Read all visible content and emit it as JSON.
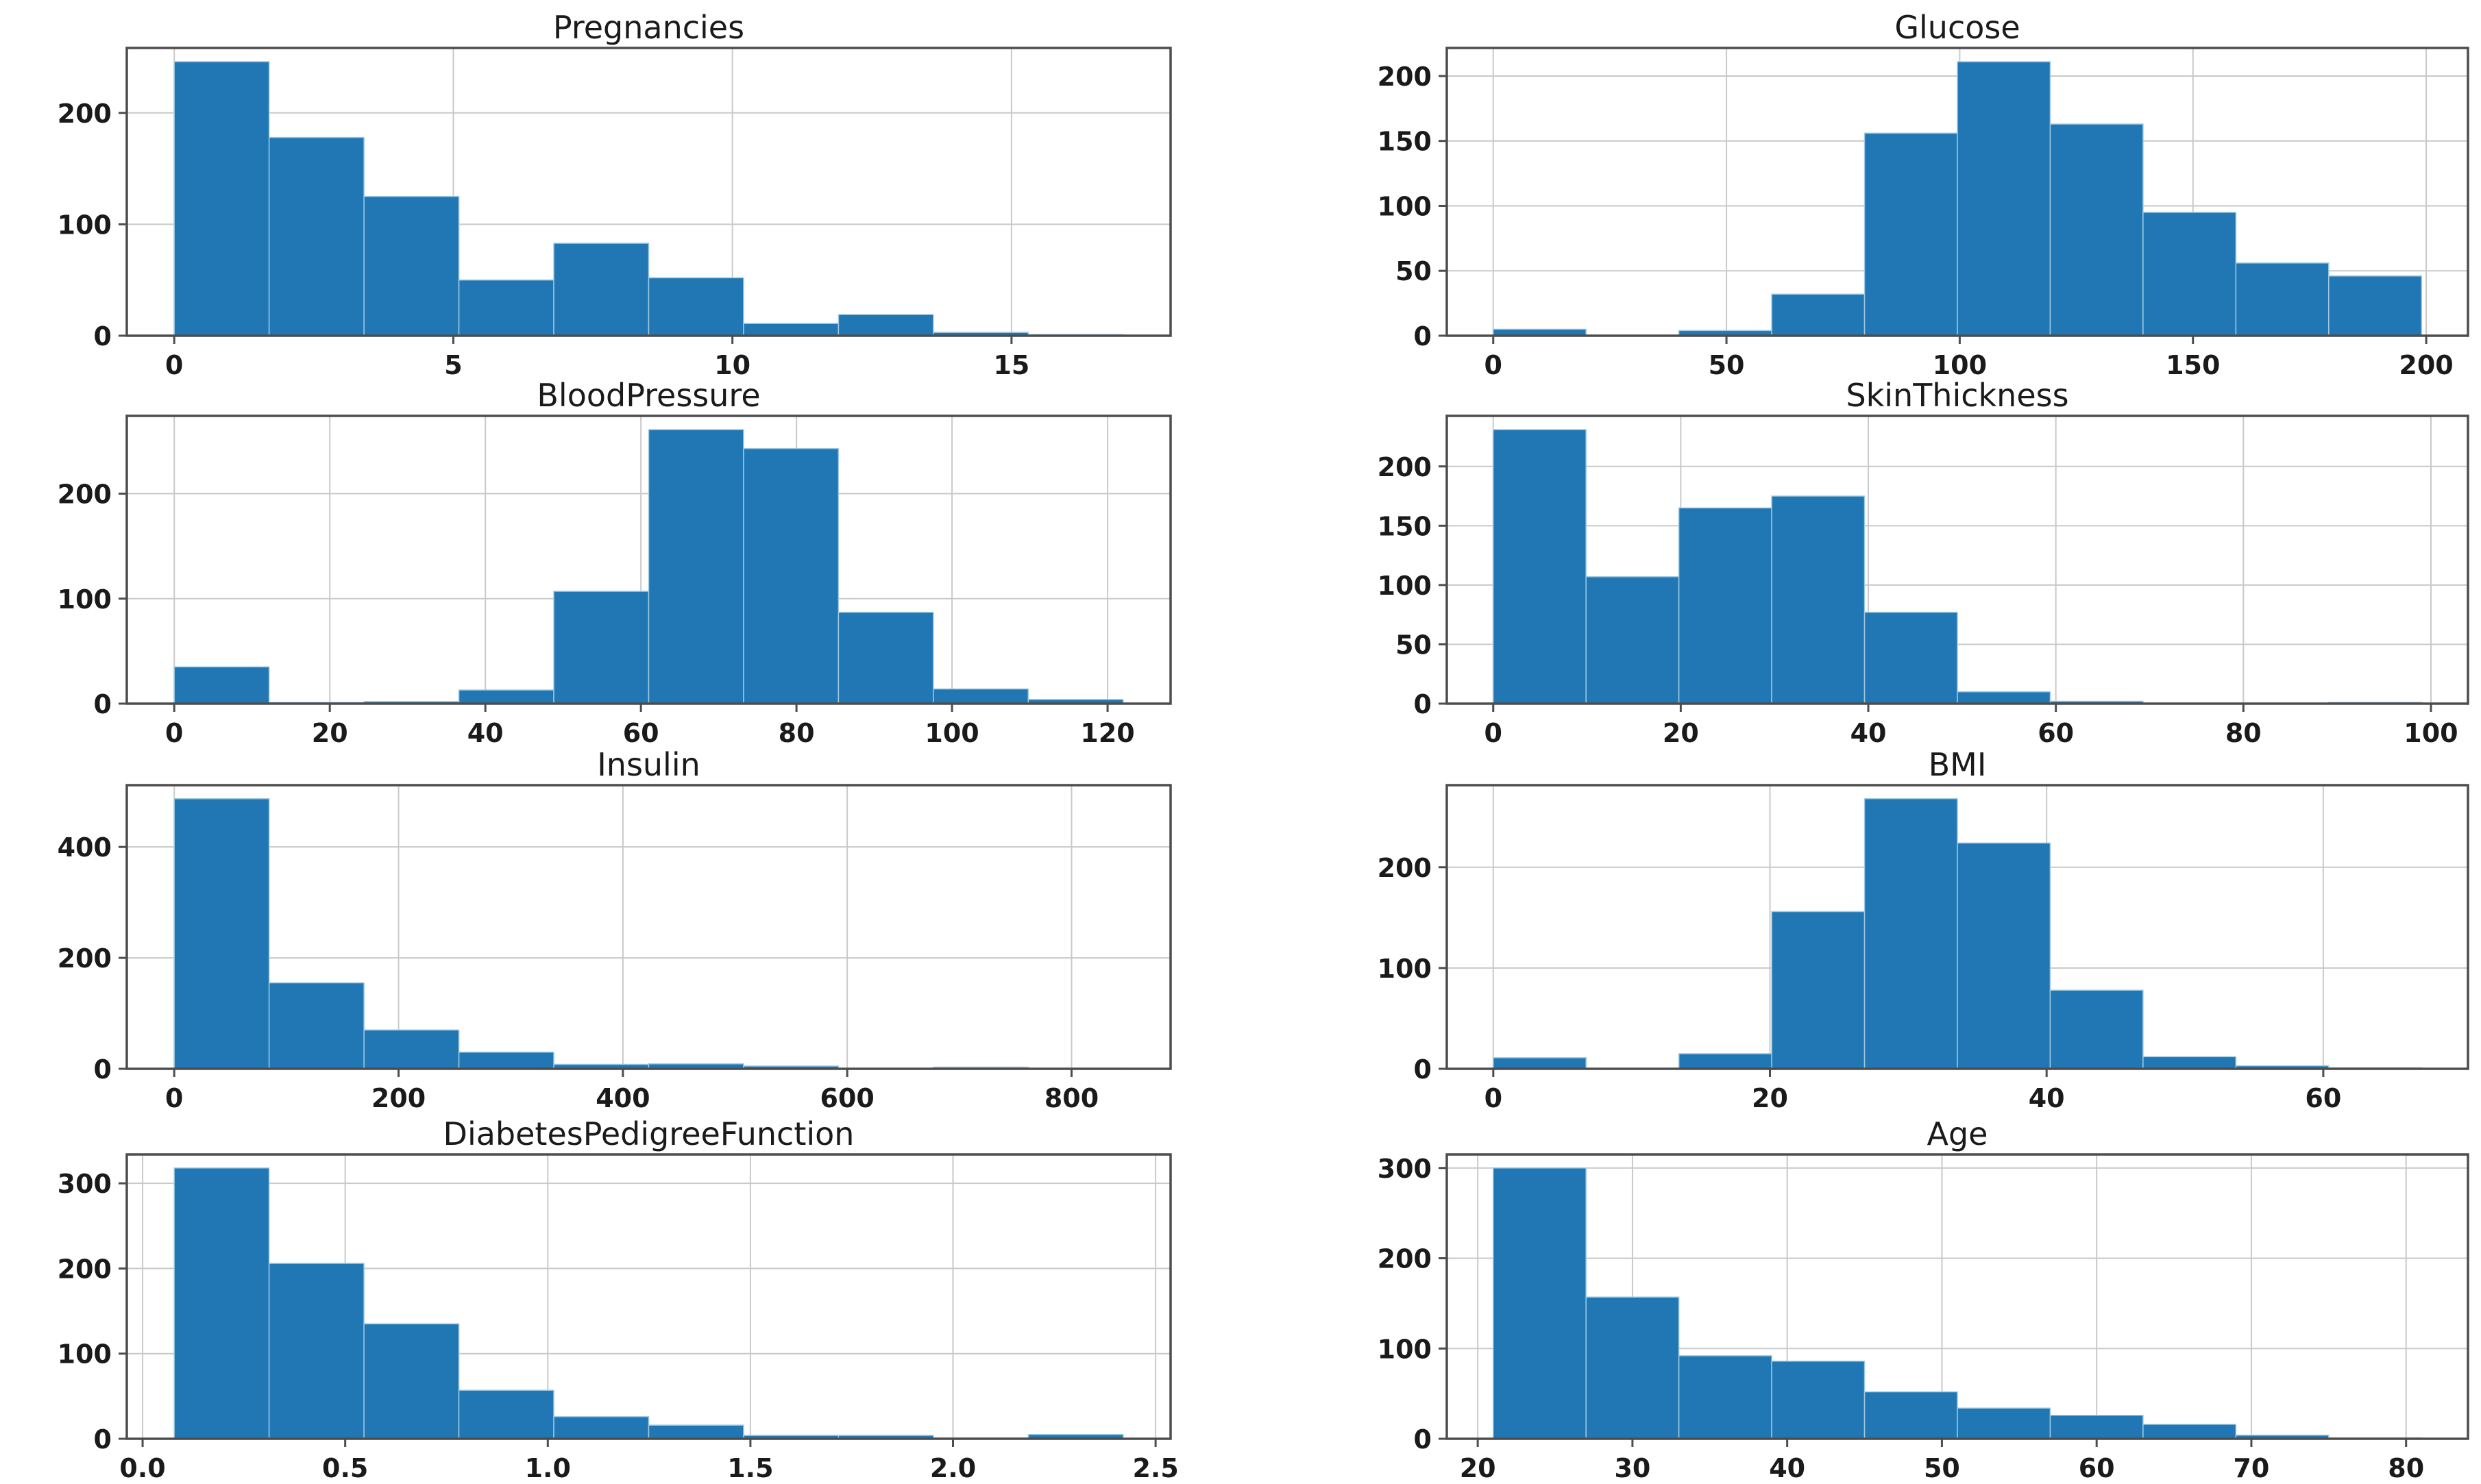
{
  "figure": {
    "background": "#ffffff",
    "bar_color": "#2077b4",
    "bar_edge_color": "#9ec9e2",
    "grid_color": "#c9c9c9",
    "spine_color": "#4d4d4d",
    "text_color": "#1a1a1a",
    "grid": true,
    "legend": "none"
  },
  "chart_data": [
    {
      "type": "bar",
      "subtype": "histogram",
      "title": "Pregnancies",
      "bins": 10,
      "bin_range": [
        0,
        17
      ],
      "values": [
        246,
        178,
        125,
        50,
        83,
        52,
        11,
        19,
        3,
        1
      ],
      "x_tick_values": [
        0,
        5,
        10,
        15
      ],
      "x_tick_labels": [
        "0",
        "5",
        "10",
        "15"
      ],
      "y_tick_values": [
        0,
        100,
        200
      ],
      "y_tick_labels": [
        "0",
        "100",
        "200"
      ],
      "xlim": [
        -0.85,
        17.85
      ],
      "ylim": [
        0,
        258.3
      ],
      "xlabel": "",
      "ylabel": ""
    },
    {
      "type": "bar",
      "subtype": "histogram",
      "title": "Glucose",
      "bins": 10,
      "bin_range": [
        0,
        199
      ],
      "values": [
        5,
        0,
        4,
        32,
        156,
        211,
        163,
        95,
        56,
        46
      ],
      "x_tick_values": [
        0,
        50,
        100,
        150,
        200
      ],
      "x_tick_labels": [
        "0",
        "50",
        "100",
        "150",
        "200"
      ],
      "y_tick_values": [
        0,
        50,
        100,
        150,
        200
      ],
      "y_tick_labels": [
        "0",
        "50",
        "100",
        "150",
        "200"
      ],
      "xlim": [
        -9.95,
        208.95
      ],
      "ylim": [
        0,
        221.6
      ],
      "xlabel": "",
      "ylabel": ""
    },
    {
      "type": "bar",
      "subtype": "histogram",
      "title": "BloodPressure",
      "bins": 10,
      "bin_range": [
        0,
        122
      ],
      "values": [
        35,
        1,
        2,
        13,
        107,
        261,
        243,
        87,
        14,
        4
      ],
      "x_tick_values": [
        0,
        20,
        40,
        60,
        80,
        100,
        120
      ],
      "x_tick_labels": [
        "0",
        "20",
        "40",
        "60",
        "80",
        "100",
        "120"
      ],
      "y_tick_values": [
        0,
        100,
        200
      ],
      "y_tick_labels": [
        "0",
        "100",
        "200"
      ],
      "xlim": [
        -6.1,
        128.1
      ],
      "ylim": [
        0,
        274.1
      ],
      "xlabel": "",
      "ylabel": ""
    },
    {
      "type": "bar",
      "subtype": "histogram",
      "title": "SkinThickness",
      "bins": 10,
      "bin_range": [
        0,
        99
      ],
      "values": [
        231,
        107,
        165,
        175,
        77,
        10,
        2,
        0,
        0,
        1
      ],
      "x_tick_values": [
        0,
        20,
        40,
        60,
        80,
        100
      ],
      "x_tick_labels": [
        "0",
        "20",
        "40",
        "60",
        "80",
        "100"
      ],
      "y_tick_values": [
        0,
        50,
        100,
        150,
        200
      ],
      "y_tick_labels": [
        "0",
        "50",
        "100",
        "150",
        "200"
      ],
      "xlim": [
        -4.95,
        103.95
      ],
      "ylim": [
        0,
        242.6
      ],
      "xlabel": "",
      "ylabel": ""
    },
    {
      "type": "bar",
      "subtype": "histogram",
      "title": "Insulin",
      "bins": 10,
      "bin_range": [
        0,
        846
      ],
      "values": [
        487,
        155,
        70,
        30,
        8,
        9,
        5,
        1,
        3,
        1
      ],
      "x_tick_values": [
        0,
        200,
        400,
        600,
        800
      ],
      "x_tick_labels": [
        "0",
        "200",
        "400",
        "600",
        "800"
      ],
      "y_tick_values": [
        0,
        200,
        400
      ],
      "y_tick_labels": [
        "0",
        "200",
        "400"
      ],
      "xlim": [
        -42.3,
        888.3
      ],
      "ylim": [
        0,
        511.4
      ],
      "xlabel": "",
      "ylabel": ""
    },
    {
      "type": "bar",
      "subtype": "histogram",
      "title": "BMI",
      "bins": 10,
      "bin_range": [
        0,
        67.1
      ],
      "values": [
        11,
        0,
        15,
        156,
        268,
        224,
        78,
        12,
        3,
        1
      ],
      "x_tick_values": [
        0,
        20,
        40,
        60
      ],
      "x_tick_labels": [
        "0",
        "20",
        "40",
        "60"
      ],
      "y_tick_values": [
        0,
        100,
        200
      ],
      "y_tick_labels": [
        "0",
        "100",
        "200"
      ],
      "xlim": [
        -3.36,
        70.46
      ],
      "ylim": [
        0,
        281.4
      ],
      "xlabel": "",
      "ylabel": ""
    },
    {
      "type": "bar",
      "subtype": "histogram",
      "title": "DiabetesPedigreeFunction",
      "bins": 10,
      "bin_range": [
        0.078,
        2.42
      ],
      "values": [
        318,
        206,
        135,
        57,
        26,
        16,
        4,
        4,
        1,
        5
      ],
      "x_tick_values": [
        0.0,
        0.5,
        1.0,
        1.5,
        2.0,
        2.5
      ],
      "x_tick_labels": [
        "0.0",
        "0.5",
        "1.0",
        "1.5",
        "2.0",
        "2.5"
      ],
      "y_tick_values": [
        0,
        100,
        200,
        300
      ],
      "y_tick_labels": [
        "0",
        "100",
        "200",
        "300"
      ],
      "xlim": [
        -0.039,
        2.537
      ],
      "ylim": [
        0,
        333.9
      ],
      "xlabel": "",
      "ylabel": ""
    },
    {
      "type": "bar",
      "subtype": "histogram",
      "title": "Age",
      "bins": 10,
      "bin_range": [
        21,
        81
      ],
      "values": [
        300,
        157,
        92,
        86,
        52,
        34,
        26,
        16,
        4,
        1
      ],
      "x_tick_values": [
        20,
        30,
        40,
        50,
        60,
        70,
        80
      ],
      "x_tick_labels": [
        "20",
        "30",
        "40",
        "50",
        "60",
        "70",
        "80"
      ],
      "y_tick_values": [
        0,
        100,
        200,
        300
      ],
      "y_tick_labels": [
        "0",
        "100",
        "200",
        "300"
      ],
      "xlim": [
        18,
        84
      ],
      "ylim": [
        0,
        315
      ],
      "xlabel": "",
      "ylabel": ""
    }
  ]
}
